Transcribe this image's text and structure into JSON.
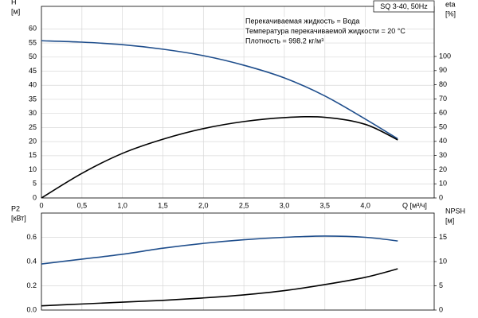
{
  "chart_data": [
    {
      "type": "line",
      "title": "SQ 3-40, 50Hz",
      "annotations": [
        "Перекачиваемая жидкость = Вода",
        "Температура перекачиваемой жидкости = 20 °C",
        "Плотность = 998.2 кг/м³"
      ],
      "xlabel": "Q [м³/ч]",
      "ylabel": [
        "H",
        "[м]"
      ],
      "y2label": [
        "eta",
        "[%]"
      ],
      "xlim": [
        0,
        4.85
      ],
      "ylim": [
        0,
        68
      ],
      "y2lim": [
        0,
        135.4
      ],
      "grid": true,
      "xticks": [
        0,
        {
          "value": 0.5,
          "label": "0,5"
        },
        {
          "value": 1.0,
          "label": "1,0"
        },
        {
          "value": 1.5,
          "label": "1,5"
        },
        {
          "value": 2.0,
          "label": "2,0"
        },
        {
          "value": 2.5,
          "label": "2,5"
        },
        {
          "value": 3.0,
          "label": "3,0"
        },
        {
          "value": 3.5,
          "label": "3,5"
        },
        {
          "value": 4.0,
          "label": "4,0"
        }
      ],
      "yticks": [
        0,
        5,
        10,
        15,
        20,
        25,
        30,
        35,
        40,
        45,
        50,
        55,
        60
      ],
      "y2ticks": [
        0,
        10,
        20,
        30,
        40,
        50,
        60,
        70,
        80,
        90,
        100
      ],
      "series": [
        {
          "color": "#1f4e8c",
          "x": [
            0,
            0.5,
            1.0,
            1.5,
            2.0,
            2.5,
            3.0,
            3.5,
            4.0,
            4.4
          ],
          "values": [
            55.8,
            55.3,
            54.4,
            52.8,
            50.5,
            47.1,
            42.6,
            36.2,
            28,
            21
          ]
        },
        {
          "color": "#000000",
          "axis": "y2",
          "x": [
            0,
            0.5,
            1.0,
            1.5,
            2.0,
            2.5,
            3.0,
            3.5,
            4.0,
            4.4
          ],
          "values": [
            0,
            17.4,
            31.5,
            41.5,
            49,
            54,
            56.8,
            57,
            52,
            41
          ]
        }
      ]
    },
    {
      "type": "line",
      "ylabel": [
        "P2",
        "[кВт]"
      ],
      "y2label": [
        "NPSH",
        "[м]"
      ],
      "xlim": [
        0,
        4.85
      ],
      "ylim": [
        0,
        0.8
      ],
      "y2lim": [
        0,
        20
      ],
      "grid": true,
      "xticks": [
        0,
        0.5,
        1,
        1.5,
        2,
        2.5,
        3,
        3.5,
        4
      ],
      "yticks": [
        {
          "value": 0,
          "label": "0.0"
        },
        0.2,
        0.4,
        0.6
      ],
      "y2ticks": [
        0,
        5,
        10,
        15
      ],
      "series": [
        {
          "color": "#1f4e8c",
          "x": [
            0,
            0.5,
            1.0,
            1.5,
            2.0,
            2.5,
            3.0,
            3.5,
            4.0,
            4.4
          ],
          "values": [
            0.38,
            0.42,
            0.46,
            0.51,
            0.55,
            0.58,
            0.6,
            0.61,
            0.6,
            0.57
          ]
        },
        {
          "color": "#000000",
          "x": [
            0,
            0.5,
            1.0,
            1.5,
            2.0,
            2.5,
            3.0,
            3.5,
            4.0,
            4.4
          ],
          "values": [
            0.035,
            0.05,
            0.065,
            0.08,
            0.1,
            0.125,
            0.16,
            0.21,
            0.27,
            0.34
          ]
        }
      ]
    }
  ]
}
